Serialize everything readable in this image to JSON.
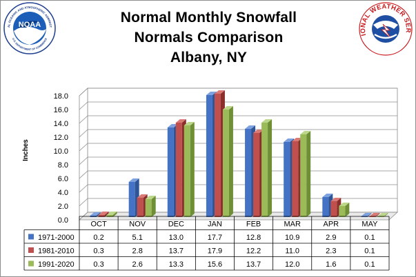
{
  "logos": {
    "left_arc_text": "NATIONAL OCEANIC AND ATMOSPHERIC ADMINISTRATION",
    "left_bottom_text": "U.S. DEPARTMENT OF COMMERCE",
    "left_center_text": "NOAA",
    "right_arc_text": "NATIONAL WEATHER SERVICE"
  },
  "colors": {
    "series": [
      "#4472c4",
      "#c0504d",
      "#9bbb59"
    ],
    "series_dark": [
      "#2f5597",
      "#8b2f2c",
      "#6f8f37"
    ],
    "series_light": [
      "#7ea1df",
      "#d97a77",
      "#bcd68a"
    ],
    "wall": "#ffffff",
    "grid": "#8c8c8c"
  },
  "chart_data": {
    "type": "bar",
    "title": [
      "Normal Monthly Snowfall",
      "Normals Comparison",
      "Albany, NY"
    ],
    "ylabel": "Inches",
    "xlabel": "",
    "ylim": [
      0,
      18
    ],
    "y_ticks": [
      "0.0",
      "2.0",
      "4.0",
      "6.0",
      "8.0",
      "10.0",
      "12.0",
      "14.0",
      "16.0",
      "18.0"
    ],
    "grid": true,
    "legend": "data-table",
    "categories": [
      "OCT",
      "NOV",
      "DEC",
      "JAN",
      "FEB",
      "MAR",
      "APR",
      "MAY"
    ],
    "series": [
      {
        "name": "1971-2000",
        "values": [
          0.2,
          5.1,
          13.0,
          17.7,
          12.8,
          10.9,
          2.9,
          0.1
        ]
      },
      {
        "name": "1981-2010",
        "values": [
          0.3,
          2.8,
          13.7,
          17.9,
          12.2,
          11.0,
          2.3,
          0.1
        ]
      },
      {
        "name": "1991-2020",
        "values": [
          0.3,
          2.6,
          13.3,
          15.6,
          13.7,
          12.0,
          1.6,
          0.1
        ]
      }
    ],
    "table_values": [
      [
        "0.2",
        "5.1",
        "13.0",
        "17.7",
        "12.8",
        "10.9",
        "2.9",
        "0.1"
      ],
      [
        "0.3",
        "2.8",
        "13.7",
        "17.9",
        "12.2",
        "11.0",
        "2.3",
        "0.1"
      ],
      [
        "0.3",
        "2.6",
        "13.3",
        "15.6",
        "13.7",
        "12.0",
        "1.6",
        "0.1"
      ]
    ]
  }
}
